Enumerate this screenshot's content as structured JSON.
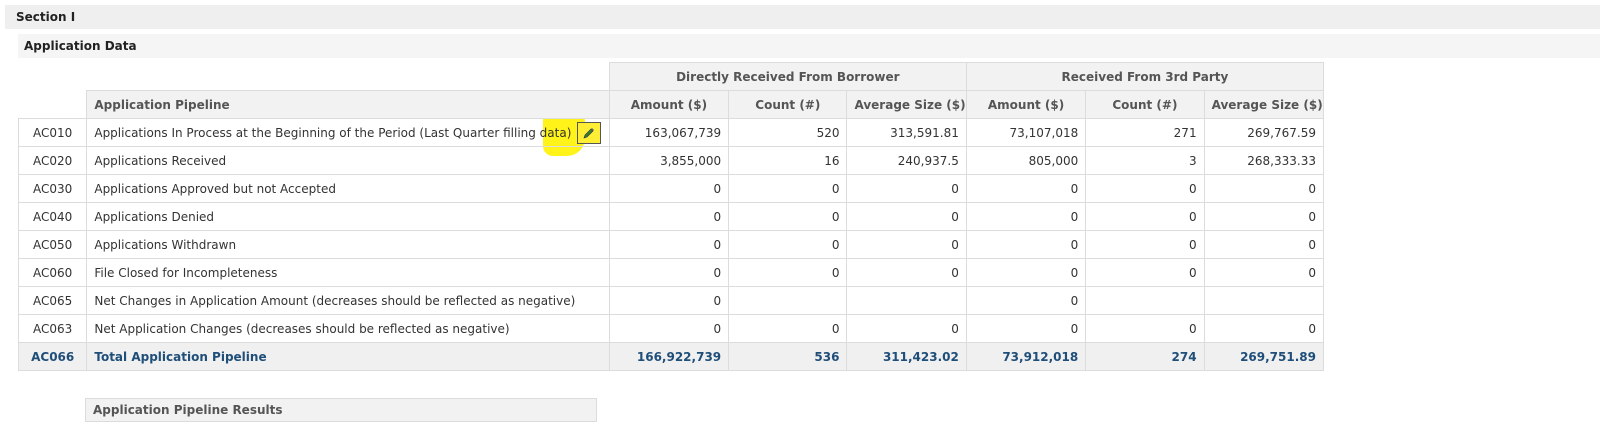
{
  "section_title": "Section I",
  "subsection_title": "Application Data",
  "groups": {
    "direct": "Directly Received From Borrower",
    "third": "Received From 3rd Party"
  },
  "columns": {
    "pipeline": "Application Pipeline",
    "amount": "Amount ($)",
    "count": "Count (#)",
    "avg": "Average Size ($)"
  },
  "rows": [
    {
      "code": "AC010",
      "desc": "Applications In Process at the Beginning of the Period (Last Quarter filling data)",
      "d_amount": "163,067,739",
      "d_count": "520",
      "d_avg": "313,591.81",
      "t_amount": "73,107,018",
      "t_count": "271",
      "t_avg": "269,767.59"
    },
    {
      "code": "AC020",
      "desc": "Applications Received",
      "d_amount": "3,855,000",
      "d_count": "16",
      "d_avg": "240,937.5",
      "t_amount": "805,000",
      "t_count": "3",
      "t_avg": "268,333.33"
    },
    {
      "code": "AC030",
      "desc": "Applications Approved but not Accepted",
      "d_amount": "0",
      "d_count": "0",
      "d_avg": "0",
      "t_amount": "0",
      "t_count": "0",
      "t_avg": "0"
    },
    {
      "code": "AC040",
      "desc": "Applications Denied",
      "d_amount": "0",
      "d_count": "0",
      "d_avg": "0",
      "t_amount": "0",
      "t_count": "0",
      "t_avg": "0"
    },
    {
      "code": "AC050",
      "desc": "Applications Withdrawn",
      "d_amount": "0",
      "d_count": "0",
      "d_avg": "0",
      "t_amount": "0",
      "t_count": "0",
      "t_avg": "0"
    },
    {
      "code": "AC060",
      "desc": "File Closed for Incompleteness",
      "d_amount": "0",
      "d_count": "0",
      "d_avg": "0",
      "t_amount": "0",
      "t_count": "0",
      "t_avg": "0"
    },
    {
      "code": "AC065",
      "desc": "Net Changes in Application Amount (decreases should be reflected as negative)",
      "d_amount": "0",
      "d_count": "",
      "d_avg": "",
      "t_amount": "0",
      "t_count": "",
      "t_avg": ""
    },
    {
      "code": "AC063",
      "desc": "Net Application Changes (decreases should be reflected as negative)",
      "d_amount": "0",
      "d_count": "0",
      "d_avg": "0",
      "t_amount": "0",
      "t_count": "0",
      "t_avg": "0"
    }
  ],
  "total": {
    "code": "AC066",
    "desc": "Total Application Pipeline",
    "d_amount": "166,922,739",
    "d_count": "536",
    "d_avg": "311,423.02",
    "t_amount": "73,912,018",
    "t_count": "274",
    "t_avg": "269,751.89"
  },
  "next_section_header": "Application Pipeline Results",
  "icons": {
    "edit": "pencil-icon"
  },
  "colors": {
    "highlight": "#fff200",
    "total_text": "#1f4e79",
    "header_bg": "#f2f2f2"
  }
}
